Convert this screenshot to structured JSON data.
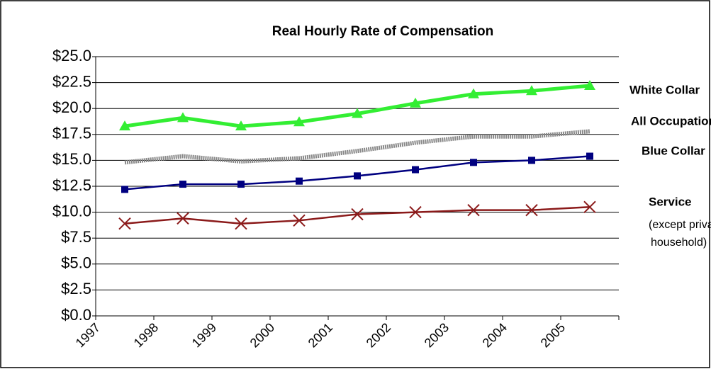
{
  "chart_data": {
    "type": "line",
    "title": "Real Hourly Rate of Compensation",
    "categories": [
      "1997",
      "1998",
      "1999",
      "2000",
      "2001",
      "2002",
      "2003",
      "2004",
      "2005"
    ],
    "series": [
      {
        "name": "White Collar",
        "color": "#33ee33",
        "marker": "triangle",
        "values": [
          18.3,
          19.1,
          18.3,
          18.7,
          19.5,
          20.5,
          21.4,
          21.7,
          22.2
        ]
      },
      {
        "name": "All Occupations",
        "color": "#888888",
        "marker": "none",
        "values": [
          14.8,
          15.4,
          14.9,
          15.2,
          15.9,
          16.7,
          17.3,
          17.3,
          17.8
        ]
      },
      {
        "name": "Blue Collar",
        "color": "#000080",
        "marker": "square",
        "values": [
          12.2,
          12.7,
          12.7,
          13.0,
          13.5,
          14.1,
          14.8,
          15.0,
          15.4
        ]
      },
      {
        "name": "Service",
        "color": "#8b1a1a",
        "marker": "x",
        "values": [
          8.9,
          9.4,
          8.9,
          9.2,
          9.8,
          10.0,
          10.2,
          10.2,
          10.5
        ]
      }
    ],
    "annotations": [
      "(except private",
      "household)"
    ],
    "ylim": [
      0,
      25
    ],
    "yticks": [
      {
        "value": 0,
        "label": "$0.0"
      },
      {
        "value": 2.5,
        "label": "$2.5"
      },
      {
        "value": 5,
        "label": "$5.0"
      },
      {
        "value": 7.5,
        "label": "$7.5"
      },
      {
        "value": 10,
        "label": "$10.0"
      },
      {
        "value": 12.5,
        "label": "$12.5"
      },
      {
        "value": 15,
        "label": "$15.0"
      },
      {
        "value": 17.5,
        "label": "$17.5"
      },
      {
        "value": 20,
        "label": "$20.0"
      },
      {
        "value": 22.5,
        "label": "$22.5"
      },
      {
        "value": 25,
        "label": "$25.0"
      }
    ],
    "grid": true
  }
}
